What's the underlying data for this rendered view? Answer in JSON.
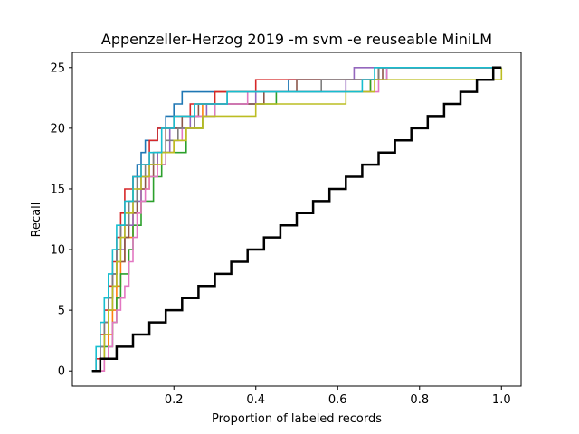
{
  "chart_data": {
    "type": "line",
    "title": "Appenzeller-Herzog 2019 -m svm -e reuseable MiniLM",
    "xlabel": "Proportion of labeled records",
    "ylabel": "Recall",
    "xlim": [
      -0.048,
      1.048
    ],
    "ylim": [
      -1.25,
      26.25
    ],
    "xticks": [
      0.2,
      0.4,
      0.6,
      0.8,
      1.0
    ],
    "xtick_labels": [
      "0.2",
      "0.4",
      "0.6",
      "0.8",
      "1.0"
    ],
    "yticks": [
      0,
      5,
      10,
      15,
      20,
      25
    ],
    "ytick_labels": [
      "0",
      "5",
      "10",
      "15",
      "20",
      "25"
    ],
    "grid": false,
    "legend": "none",
    "total_relevant": 25,
    "series": [
      {
        "color": "#1f77b4",
        "x": [
          0.0,
          0.02,
          0.03,
          0.04,
          0.05,
          0.06,
          0.07,
          0.08,
          0.09,
          0.1,
          0.11,
          0.12,
          0.13,
          0.14,
          0.16,
          0.18,
          0.2,
          0.22,
          0.26,
          0.47,
          0.48,
          0.7,
          0.72,
          1.0
        ],
        "y": [
          0,
          2,
          4,
          6,
          8,
          10,
          12,
          13,
          14,
          16,
          17,
          18,
          19,
          19,
          20,
          21,
          22,
          23,
          23,
          23,
          24,
          24,
          25,
          25
        ]
      },
      {
        "color": "#ff7f0e",
        "x": [
          0.0,
          0.03,
          0.04,
          0.05,
          0.06,
          0.07,
          0.08,
          0.1,
          0.12,
          0.14,
          0.16,
          0.2,
          0.23,
          0.27,
          0.3,
          0.4,
          0.68,
          0.7,
          1.0
        ],
        "y": [
          0,
          1,
          3,
          5,
          7,
          9,
          11,
          13,
          15,
          17,
          18,
          19,
          20,
          22,
          23,
          23,
          24,
          25,
          25
        ]
      },
      {
        "color": "#2ca02c",
        "x": [
          0.0,
          0.02,
          0.03,
          0.05,
          0.06,
          0.07,
          0.09,
          0.1,
          0.12,
          0.15,
          0.17,
          0.18,
          0.23,
          0.27,
          0.3,
          0.45,
          0.68,
          0.7,
          1.0
        ],
        "y": [
          0,
          1,
          2,
          4,
          6,
          8,
          10,
          12,
          14,
          16,
          17,
          18,
          20,
          21,
          22,
          23,
          24,
          25,
          25
        ]
      },
      {
        "color": "#d62728",
        "x": [
          0.0,
          0.01,
          0.02,
          0.03,
          0.04,
          0.05,
          0.06,
          0.07,
          0.08,
          0.1,
          0.12,
          0.14,
          0.16,
          0.2,
          0.24,
          0.3,
          0.35,
          0.4,
          0.7,
          1.0
        ],
        "y": [
          0,
          1,
          3,
          5,
          7,
          9,
          11,
          13,
          15,
          16,
          17,
          19,
          20,
          21,
          22,
          23,
          23,
          24,
          25,
          25
        ]
      },
      {
        "color": "#9467bd",
        "x": [
          0.0,
          0.02,
          0.03,
          0.04,
          0.05,
          0.06,
          0.08,
          0.1,
          0.12,
          0.14,
          0.16,
          0.19,
          0.24,
          0.28,
          0.4,
          0.62,
          0.64,
          1.0
        ],
        "y": [
          0,
          2,
          4,
          6,
          8,
          10,
          12,
          14,
          16,
          17,
          18,
          20,
          21,
          22,
          23,
          24,
          25,
          25
        ]
      },
      {
        "color": "#8c564b",
        "x": [
          0.0,
          0.02,
          0.03,
          0.04,
          0.05,
          0.06,
          0.08,
          0.09,
          0.11,
          0.13,
          0.15,
          0.18,
          0.22,
          0.26,
          0.42,
          0.5,
          0.71,
          1.0
        ],
        "y": [
          0,
          1,
          3,
          5,
          7,
          9,
          11,
          13,
          15,
          16,
          18,
          20,
          21,
          22,
          23,
          24,
          25,
          25
        ]
      },
      {
        "color": "#e377c2",
        "x": [
          0.0,
          0.03,
          0.04,
          0.05,
          0.06,
          0.07,
          0.08,
          0.09,
          0.1,
          0.11,
          0.12,
          0.13,
          0.14,
          0.16,
          0.18,
          0.2,
          0.22,
          0.25,
          0.3,
          0.38,
          0.44,
          0.7,
          0.72,
          1.0
        ],
        "y": [
          0,
          1,
          2,
          4,
          5,
          6,
          7,
          9,
          11,
          13,
          14,
          15,
          16,
          17,
          18,
          19,
          20,
          21,
          22,
          23,
          23,
          24,
          25,
          25
        ]
      },
      {
        "color": "#7f7f7f",
        "x": [
          0.0,
          0.02,
          0.03,
          0.04,
          0.05,
          0.06,
          0.07,
          0.09,
          0.11,
          0.13,
          0.15,
          0.18,
          0.21,
          0.25,
          0.33,
          0.56,
          0.7,
          1.0
        ],
        "y": [
          0,
          2,
          4,
          6,
          8,
          10,
          12,
          14,
          16,
          17,
          18,
          19,
          20,
          22,
          23,
          24,
          25,
          25
        ]
      },
      {
        "color": "#bcbd22",
        "x": [
          0.0,
          0.02,
          0.03,
          0.04,
          0.05,
          0.06,
          0.07,
          0.08,
          0.1,
          0.12,
          0.14,
          0.17,
          0.2,
          0.23,
          0.27,
          0.4,
          0.62,
          0.69,
          1.0
        ],
        "y": [
          0,
          1,
          3,
          5,
          7,
          9,
          11,
          13,
          15,
          16,
          17,
          18,
          19,
          20,
          21,
          22,
          23,
          24,
          25
        ]
      },
      {
        "color": "#17becf",
        "x": [
          0.0,
          0.01,
          0.02,
          0.03,
          0.04,
          0.05,
          0.06,
          0.08,
          0.1,
          0.12,
          0.14,
          0.17,
          0.2,
          0.25,
          0.33,
          0.66,
          0.69,
          1.0
        ],
        "y": [
          0,
          2,
          4,
          6,
          8,
          10,
          12,
          14,
          16,
          17,
          18,
          20,
          21,
          22,
          23,
          24,
          25,
          25
        ]
      },
      {
        "color": "#000000",
        "x": [
          0.0,
          0.02,
          0.06,
          0.1,
          0.14,
          0.18,
          0.22,
          0.26,
          0.3,
          0.34,
          0.38,
          0.42,
          0.46,
          0.5,
          0.54,
          0.58,
          0.62,
          0.66,
          0.7,
          0.74,
          0.78,
          0.82,
          0.86,
          0.9,
          0.94,
          0.98,
          1.0
        ],
        "y": [
          0,
          1,
          2,
          3,
          4,
          5,
          6,
          7,
          8,
          9,
          10,
          11,
          12,
          13,
          14,
          15,
          16,
          17,
          18,
          19,
          20,
          21,
          22,
          23,
          24,
          25,
          25
        ]
      }
    ]
  }
}
